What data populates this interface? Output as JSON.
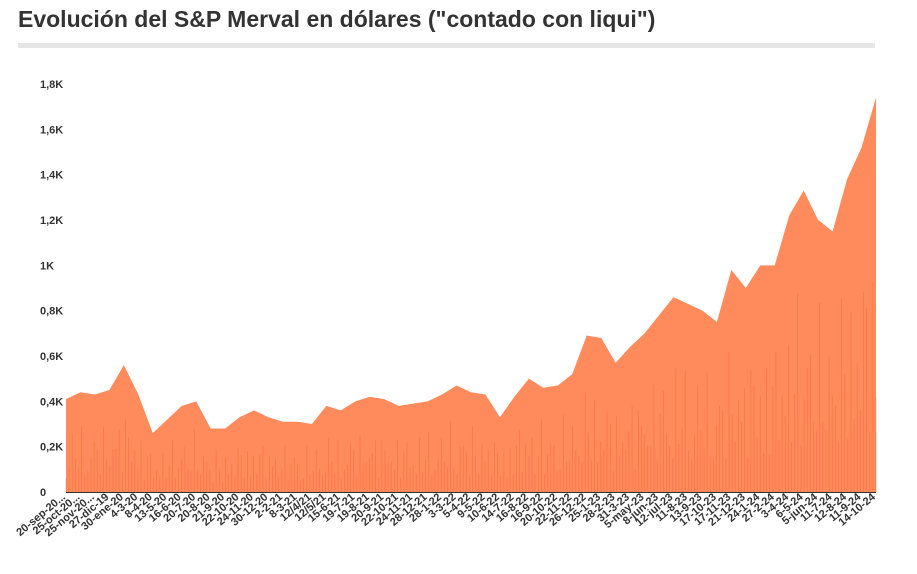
{
  "title": "Evolución del S&P Merval en dólares (\"contado con liqui\")",
  "colors": {
    "area": "#ff8a5c",
    "spike": "#ef5b24",
    "baseline": "#333333",
    "text": "#333333"
  },
  "chart_data": {
    "type": "area",
    "title": "Evolución del S&P Merval en dólares (\"contado con liqui\")",
    "xlabel": "",
    "ylabel": "",
    "ylim": [
      0,
      1800
    ],
    "y_ticks": [
      0,
      200,
      400,
      600,
      800,
      1000,
      1200,
      1400,
      1600,
      1800
    ],
    "y_tick_labels": [
      "0",
      "0,2K",
      "0,4K",
      "0,6K",
      "0,8K",
      "1K",
      "1,2K",
      "1,4K",
      "1,6K",
      "1,8K"
    ],
    "grid": false,
    "legend": "none",
    "categories": [
      "20-sep-20...",
      "25-oct-20...",
      "25-nov-20...",
      "27-dic-19",
      "30-ene-20",
      "4-3-20",
      "8-4-20",
      "13-5-20",
      "16-6-20",
      "20-7-20",
      "20-8-20",
      "21-9-20",
      "22-10-20",
      "24-11-20",
      "30-12-20",
      "2-2-21",
      "8-3-21",
      "12/4/21",
      "12/5/21",
      "15-6-21",
      "19-7-21",
      "19-8-21",
      "20-9-21",
      "22-10-21",
      "24-11-21",
      "28-12-21",
      "28-1-22",
      "3-3-22",
      "5-4-22",
      "9-5-22",
      "10-6-22",
      "14-7-22",
      "16-8-22",
      "16-9-22",
      "20-10-22",
      "22-11-22",
      "26-12-22",
      "25-1-23",
      "28-2-23",
      "31-3-23",
      "5-may-23",
      "8-jun-23",
      "12-jul-23",
      "11-8-23",
      "13-9-23",
      "17-10-23",
      "17-11-23",
      "21-12-23",
      "24-1-24",
      "27-2-24",
      "3-4-24",
      "6-5-24",
      "5-jun-24",
      "11-7-24",
      "12-8-24",
      "11-9-24",
      "14-10-24"
    ],
    "values": [
      410,
      440,
      430,
      450,
      560,
      430,
      260,
      320,
      380,
      400,
      280,
      280,
      330,
      360,
      330,
      310,
      310,
      300,
      380,
      360,
      400,
      420,
      410,
      380,
      390,
      400,
      430,
      470,
      440,
      430,
      330,
      420,
      500,
      460,
      470,
      520,
      690,
      680,
      570,
      640,
      700,
      780,
      860,
      830,
      800,
      750,
      980,
      900,
      1000,
      1000,
      1220,
      1330,
      1200,
      1150,
      1380,
      1520,
      1740
    ]
  }
}
